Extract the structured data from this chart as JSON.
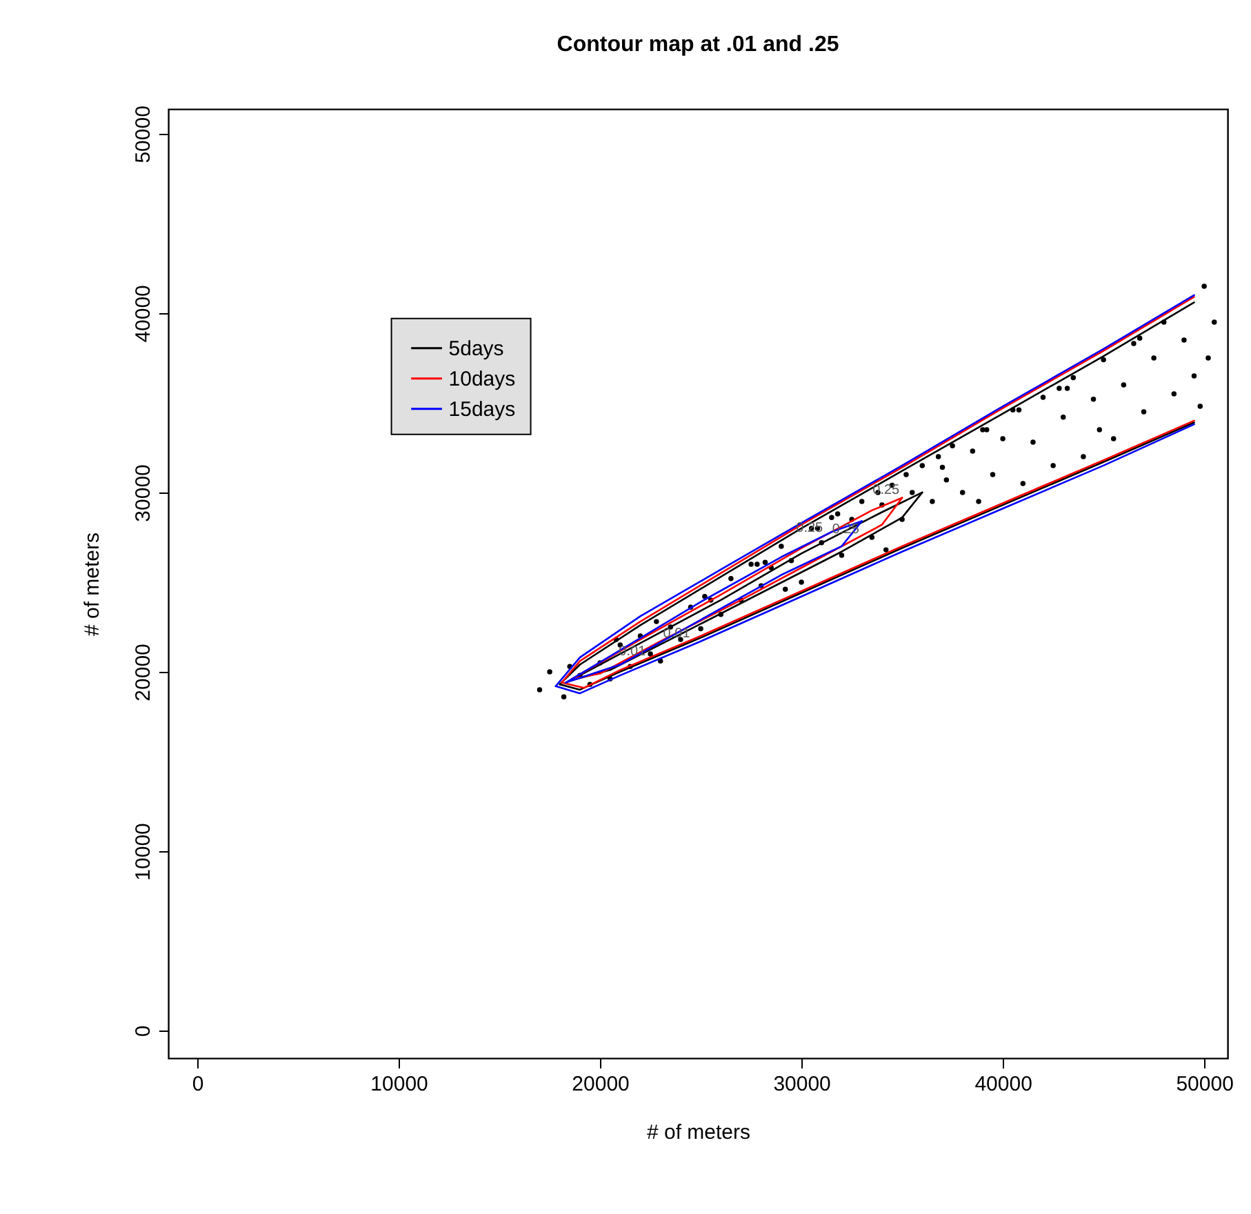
{
  "chart_data": {
    "type": "line",
    "title": "Contour map at .01 and .25",
    "xlabel": "# of meters",
    "ylabel": "# of meters",
    "xlim": [
      -1440,
      51160
    ],
    "ylim": [
      -1540,
      51380
    ],
    "xticks": [
      0,
      10000,
      20000,
      30000,
      40000,
      50000
    ],
    "yticks": [
      0,
      10000,
      20000,
      30000,
      40000,
      50000
    ],
    "grid": false,
    "legend": "top left",
    "annotations": [
      {
        "text": "0.25",
        "x": 34200,
        "y": 29300
      },
      {
        "text": "0.25",
        "x": 32200,
        "y": 27100
      },
      {
        "text": "0.25",
        "x": 30400,
        "y": 27200
      },
      {
        "text": "0.01",
        "x": 21600,
        "y": 20300
      },
      {
        "text": "0.01",
        "x": 23800,
        "y": 21300
      }
    ],
    "series": [
      {
        "type": "scatter",
        "marker": "circle",
        "color": "#000000",
        "x": [
          17000,
          17500,
          18200,
          18500,
          19000,
          19500,
          20000,
          20500,
          21000,
          21500,
          22000,
          22500,
          23000,
          23500,
          24000,
          24500,
          25000,
          25500,
          26000,
          26500,
          27000,
          27500,
          28000,
          28500,
          29000,
          29500,
          30000,
          30500,
          31000,
          31500,
          32000,
          32500,
          33000,
          33500,
          34000,
          34500,
          35000,
          35500,
          36000,
          36500,
          37000,
          37500,
          38000,
          38500,
          39000,
          39500,
          40000,
          40500,
          41000,
          41500,
          42000,
          42500,
          43000,
          43500,
          44000,
          44500,
          45000,
          45500,
          46000,
          46500,
          47000,
          47500,
          48000,
          48500,
          49000,
          49500,
          50000,
          50200,
          50500,
          49800,
          44800,
          38800,
          36800,
          33800,
          30800,
          27800,
          25200,
          22800,
          20800,
          29200,
          40800,
          42800,
          46800,
          35200,
          31800,
          39200,
          43200,
          37200,
          34200,
          28200
        ],
        "values": [
          19000,
          20000,
          18600,
          20300,
          19800,
          19300,
          20500,
          19600,
          21500,
          20300,
          22000,
          21000,
          20600,
          22500,
          21800,
          23600,
          22400,
          24000,
          23200,
          25200,
          24000,
          26000,
          24800,
          25800,
          27000,
          26200,
          25000,
          28000,
          27200,
          28600,
          26500,
          28500,
          29500,
          27500,
          29300,
          30400,
          28500,
          30000,
          31500,
          29500,
          31400,
          32600,
          30000,
          32300,
          33500,
          31000,
          33000,
          34600,
          30500,
          32800,
          35300,
          31500,
          34200,
          36400,
          32000,
          35200,
          37400,
          33000,
          36000,
          38300,
          34500,
          37500,
          39500,
          35500,
          38500,
          36500,
          41500,
          37500,
          39500,
          34800,
          33500,
          29500,
          32000,
          30000,
          28000,
          26000,
          24200,
          22800,
          21800,
          24600,
          34600,
          35800,
          38600,
          31000,
          28800,
          33500,
          35800,
          30700,
          26800,
          26100
        ]
      },
      {
        "type": "line",
        "name": "5days",
        "color": "#000000",
        "x": [
          18000,
          19000,
          22000,
          26000,
          30000,
          35000,
          40000,
          45000,
          49500
        ],
        "values": [
          19300,
          20400,
          22600,
          25300,
          28000,
          31200,
          34400,
          37600,
          40600
        ]
      },
      {
        "type": "line",
        "color": "#000000",
        "x": [
          18000,
          19000,
          21000,
          25000,
          30000,
          35000,
          40000,
          45000,
          49500
        ],
        "values": [
          19300,
          19000,
          20000,
          21900,
          24400,
          26900,
          29300,
          31700,
          33900
        ]
      },
      {
        "type": "line",
        "color": "#000000",
        "x": [
          18500,
          22000,
          26000,
          30000,
          34000,
          36000
        ],
        "values": [
          19500,
          21600,
          24000,
          26600,
          28900,
          30000
        ]
      },
      {
        "type": "line",
        "color": "#000000",
        "x": [
          18500,
          20500,
          24000,
          28000,
          32000,
          35000,
          36000
        ],
        "values": [
          19500,
          20100,
          22100,
          24400,
          26700,
          28600,
          30000
        ]
      },
      {
        "type": "line",
        "name": "10days",
        "color": "#ff0000",
        "x": [
          18100,
          19000,
          22000,
          26000,
          30000,
          35000,
          40000,
          45000,
          49500
        ],
        "values": [
          19400,
          20600,
          22800,
          25500,
          28200,
          31400,
          34700,
          37900,
          40900
        ]
      },
      {
        "type": "line",
        "color": "#ff0000",
        "x": [
          18100,
          19200,
          21000,
          25000,
          30000,
          35000,
          40000,
          45000,
          49500
        ],
        "values": [
          19400,
          19100,
          20100,
          22000,
          24500,
          27000,
          29400,
          31800,
          34000
        ]
      },
      {
        "type": "line",
        "color": "#ff0000",
        "x": [
          18600,
          22000,
          26000,
          30000,
          33500,
          35000
        ],
        "values": [
          19600,
          21800,
          24300,
          26900,
          29000,
          29700
        ]
      },
      {
        "type": "line",
        "color": "#ff0000",
        "x": [
          18600,
          20000,
          23000,
          27000,
          31000,
          34000,
          35000
        ],
        "values": [
          19600,
          19900,
          21700,
          24000,
          26400,
          28200,
          29700
        ]
      },
      {
        "type": "line",
        "name": "15days",
        "color": "#0000ff",
        "x": [
          17800,
          19000,
          22000,
          26000,
          30000,
          35000,
          40000,
          45000,
          49500
        ],
        "values": [
          19200,
          20800,
          23100,
          25700,
          28300,
          31500,
          34800,
          38000,
          41000
        ]
      },
      {
        "type": "line",
        "color": "#0000ff",
        "x": [
          17800,
          19000,
          21000,
          25000,
          30000,
          35000,
          40000,
          45000,
          49500
        ],
        "values": [
          19200,
          18800,
          19800,
          21700,
          24200,
          26700,
          29100,
          31500,
          33800
        ]
      },
      {
        "type": "line",
        "color": "#0000ff",
        "x": [
          18300,
          21000,
          25000,
          29000,
          31500,
          33000
        ],
        "values": [
          19400,
          21200,
          23900,
          26400,
          27800,
          28400
        ]
      },
      {
        "type": "line",
        "color": "#0000ff",
        "x": [
          18300,
          21000,
          25000,
          29000,
          32000,
          33000
        ],
        "values": [
          19400,
          20400,
          22900,
          25400,
          27000,
          28400
        ]
      }
    ]
  }
}
